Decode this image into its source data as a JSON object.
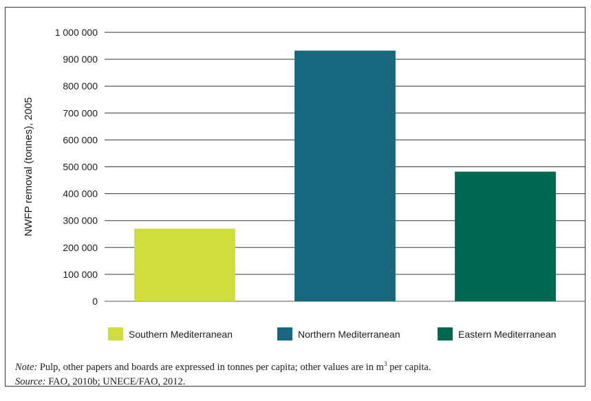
{
  "chart_data": {
    "type": "bar",
    "categories": [
      "Southern Mediterranean",
      "Northern Mediterranean",
      "Eastern Mediterranean"
    ],
    "values": [
      270000,
      932000,
      482000
    ],
    "colors": [
      "#cfde3a",
      "#17677f",
      "#006750"
    ],
    "ylabel": "NWFP removal (tonnes), 2005",
    "ylim": [
      0,
      1000000
    ],
    "yticks": [
      0,
      100000,
      200000,
      300000,
      400000,
      500000,
      600000,
      700000,
      800000,
      900000,
      1000000
    ],
    "ytick_labels": [
      "0",
      "100 000",
      "200 000",
      "300 000",
      "400 000",
      "500 000",
      "600 000",
      "700 000",
      "800 000",
      "900 000",
      "1 000 000"
    ],
    "grid": true,
    "legend": "bottom"
  },
  "notes": {
    "note_label": "Note:",
    "note_text_before": " Pulp, other papers and boards are expressed in tonnes per capita; other values are in m",
    "note_sup": "3",
    "note_text_after": " per capita.",
    "source_label": "Source:",
    "source_text": " FAO, 2010b; UNECE/FAO, 2012."
  }
}
